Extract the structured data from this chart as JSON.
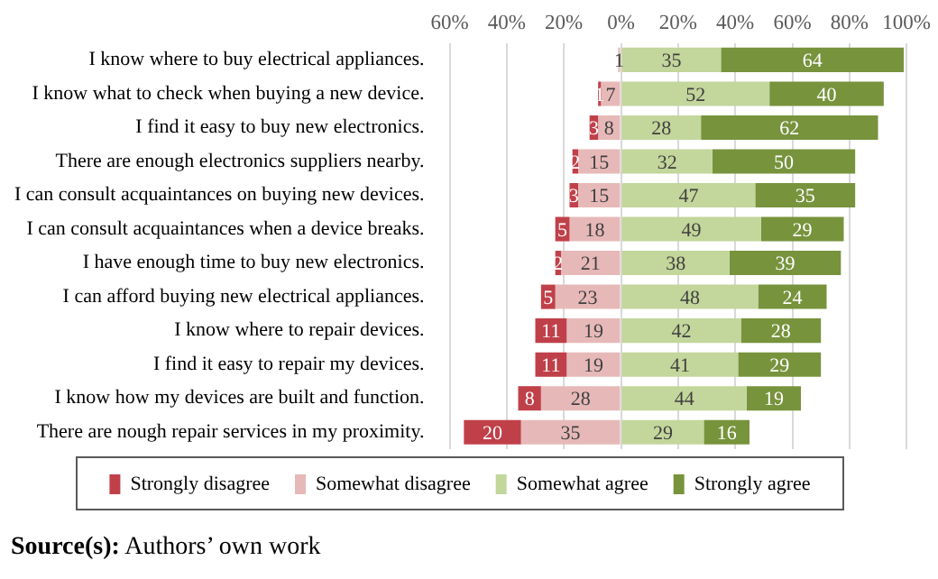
{
  "chart_data": {
    "type": "bar",
    "orientation": "horizontal",
    "categories": [
      "I know where to buy electrical appliances.",
      "I know what to check when buying a new device.",
      "I find it easy to buy new electronics.",
      "There are enough electronics suppliers nearby.",
      "I can consult acquaintances on buying new devices.",
      "I can consult acquaintances when a device breaks.",
      "I have enough time to buy new electronics.",
      "I can afford buying new electrical appliances.",
      "I know where to repair devices.",
      "I find it easy to repair my devices.",
      "I know how my devices are built and function.",
      "There are nough repair services in my proximity."
    ],
    "series": [
      {
        "name": "Strongly disagree",
        "color": "#c0404a",
        "values": [
          null,
          1,
          3,
          2,
          3,
          5,
          2,
          5,
          11,
          11,
          8,
          20
        ],
        "base": [
          null,
          -8,
          -11,
          -17,
          -18,
          -23,
          -23,
          -28,
          -30,
          -30,
          -36,
          -55
        ]
      },
      {
        "name": "Somewhat disagree",
        "color": "#e6b9b8",
        "values": [
          1,
          7,
          8,
          15,
          15,
          18,
          21,
          23,
          19,
          19,
          28,
          35
        ],
        "base": [
          -1,
          -7,
          -8,
          -15,
          -15,
          -18,
          -21,
          -23,
          -19,
          -19,
          -28,
          -35
        ]
      },
      {
        "name": "Somewhat agree",
        "color": "#c3d69b",
        "values": [
          35,
          52,
          28,
          32,
          47,
          49,
          38,
          48,
          42,
          41,
          44,
          29
        ],
        "base": [
          0,
          0,
          0,
          0,
          0,
          0,
          0,
          0,
          0,
          0,
          0,
          0
        ]
      },
      {
        "name": "Strongly agree",
        "color": "#77933c",
        "values": [
          64,
          40,
          62,
          50,
          35,
          29,
          39,
          24,
          28,
          29,
          19,
          16
        ],
        "base": [
          35,
          52,
          28,
          32,
          47,
          49,
          38,
          48,
          42,
          41,
          44,
          29
        ]
      }
    ],
    "xlim": [
      -60,
      100
    ],
    "xticks": [
      {
        "value": -60,
        "label": "60%"
      },
      {
        "value": -40,
        "label": "40%"
      },
      {
        "value": -20,
        "label": "20%"
      },
      {
        "value": 0,
        "label": "0%"
      },
      {
        "value": 20,
        "label": "20%"
      },
      {
        "value": 40,
        "label": "40%"
      },
      {
        "value": 60,
        "label": "60%"
      },
      {
        "value": 80,
        "label": "80%"
      },
      {
        "value": 100,
        "label": "100%"
      }
    ],
    "grid": "x",
    "legend": "bottom",
    "data_labels": true,
    "annotations": [
      "Source(s): Authors’ own work"
    ]
  }
}
